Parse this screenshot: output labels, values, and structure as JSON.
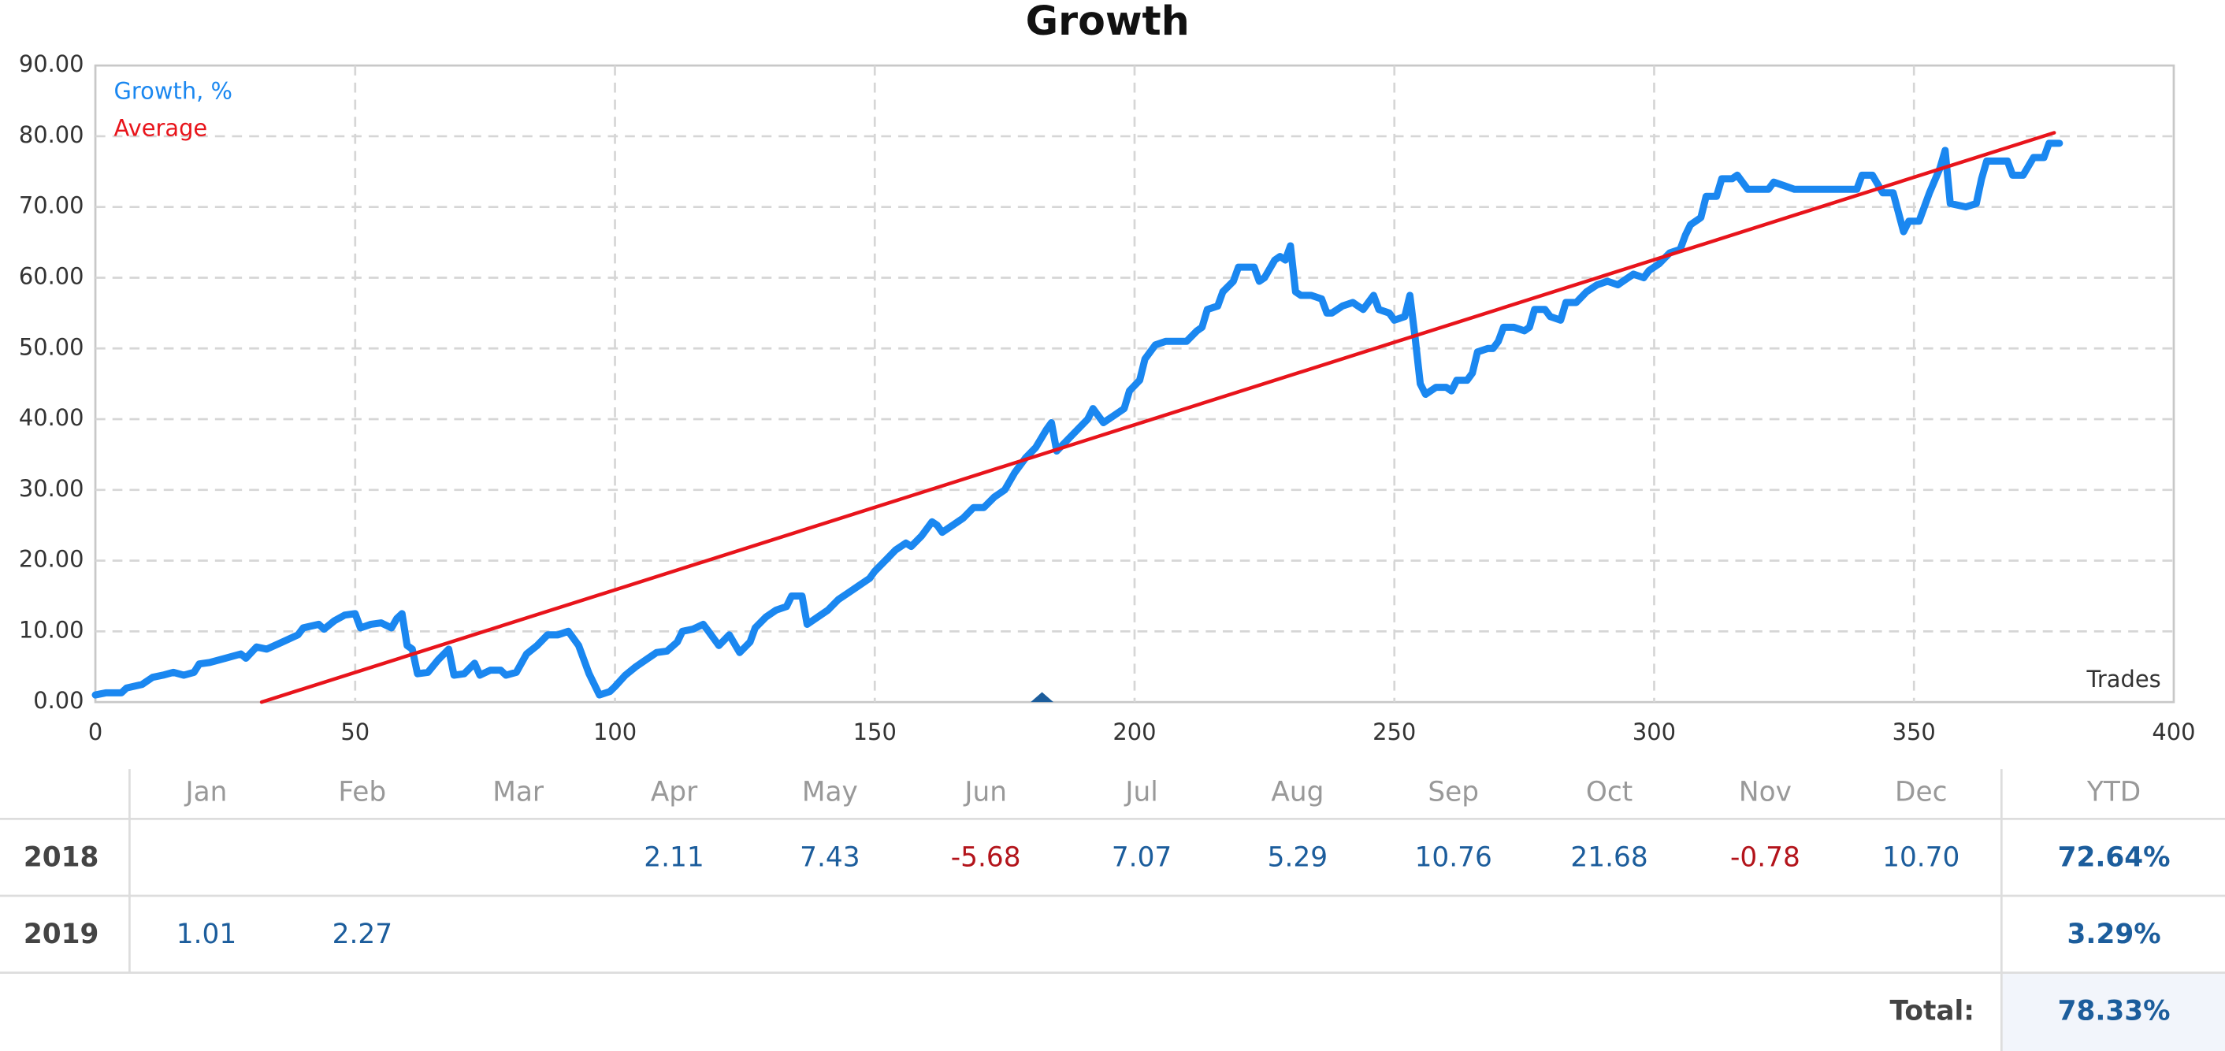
{
  "chart_data": {
    "type": "line",
    "title": "Growth",
    "x_label": "Trades",
    "legend": "top-left",
    "grid": true,
    "xlim": [
      0,
      400
    ],
    "xticks": [
      0,
      50,
      100,
      150,
      200,
      250,
      300,
      350,
      400
    ],
    "ylim": [
      0,
      90
    ],
    "yticks": [
      {
        "value": 0,
        "label": "0.00"
      },
      {
        "value": 10,
        "label": "10.00"
      },
      {
        "value": 20,
        "label": "20.00"
      },
      {
        "value": 30,
        "label": "30.00"
      },
      {
        "value": 40,
        "label": "40.00"
      },
      {
        "value": 50,
        "label": "50.00"
      },
      {
        "value": 60,
        "label": "60.00"
      },
      {
        "value": 70,
        "label": "70.00"
      },
      {
        "value": 80,
        "label": "80.00"
      },
      {
        "value": 90,
        "label": "90.00"
      }
    ],
    "series": [
      {
        "name": "Growth, %",
        "color": "#1a87f0",
        "width": 5,
        "x": [
          0,
          2,
          5,
          6,
          9,
          11,
          13,
          15,
          17,
          19,
          20,
          22,
          25,
          28,
          29,
          31,
          33,
          36,
          39,
          40,
          43,
          44,
          46,
          48,
          50,
          51,
          53,
          55,
          57,
          58,
          59,
          60,
          61,
          62,
          64,
          66,
          68,
          69,
          71,
          73,
          74,
          76,
          78,
          79,
          81,
          83,
          85,
          87,
          89,
          91,
          93,
          95,
          97,
          99,
          100,
          102,
          104,
          106,
          108,
          110,
          112,
          113,
          115,
          117,
          118,
          120,
          122,
          124,
          126,
          127,
          129,
          131,
          133,
          134,
          136,
          137,
          139,
          141,
          143,
          145,
          147,
          149,
          150,
          152,
          154,
          156,
          157,
          159,
          161,
          162,
          163,
          165,
          167,
          169,
          171,
          173,
          175,
          177,
          179,
          181,
          183,
          184,
          185,
          187,
          189,
          191,
          192,
          194,
          196,
          198,
          199,
          201,
          202,
          204,
          206,
          210,
          212,
          213,
          214,
          216,
          217,
          219,
          220,
          223,
          224,
          225,
          227,
          228,
          229,
          230,
          231,
          232,
          234,
          236,
          237,
          238,
          240,
          242,
          243,
          244,
          246,
          247,
          249,
          250,
          252,
          253,
          254,
          255,
          256,
          258,
          260,
          261,
          262,
          264,
          265,
          266,
          268,
          269,
          270,
          271,
          273,
          275,
          276,
          277,
          279,
          280,
          282,
          283,
          285,
          287,
          289,
          291,
          293,
          294,
          296,
          298,
          299,
          301,
          303,
          305,
          306,
          307,
          309,
          310,
          312,
          313,
          315,
          316,
          318,
          322,
          323,
          325,
          327,
          335,
          336,
          339,
          340,
          342,
          344,
          346,
          348,
          349,
          351,
          353,
          355,
          356,
          357,
          360,
          362,
          363,
          364,
          368,
          369,
          371,
          373,
          375,
          376,
          378
        ],
        "values": [
          1,
          1.3,
          1.3,
          2,
          2.5,
          3.5,
          3.8,
          4.2,
          3.8,
          4.2,
          5.4,
          5.6,
          6.2,
          6.8,
          6.2,
          7.8,
          7.5,
          8.5,
          9.5,
          10.5,
          11,
          10.3,
          11.5,
          12.3,
          12.5,
          10.5,
          11,
          11.2,
          10.5,
          11.8,
          12.5,
          8,
          7.5,
          4,
          4.2,
          6,
          7.5,
          3.8,
          4,
          5.5,
          3.8,
          4.5,
          4.5,
          3.8,
          4.2,
          6.8,
          8,
          9.5,
          9.5,
          10,
          8,
          4,
          1,
          1.5,
          2.2,
          3.8,
          5,
          6,
          7,
          7.2,
          8.5,
          10,
          10.3,
          11,
          10,
          8,
          9.5,
          7,
          8.5,
          10.5,
          12,
          13,
          13.5,
          15,
          15,
          11,
          12,
          13,
          14.5,
          15.5,
          16.5,
          17.5,
          18.5,
          20,
          21.5,
          22.5,
          22,
          23.5,
          25.5,
          25,
          24,
          25,
          26,
          27.5,
          27.5,
          29,
          30,
          32.5,
          34.5,
          36,
          38.5,
          39.5,
          35.5,
          37,
          38.5,
          40,
          41.5,
          39.5,
          40.5,
          41.5,
          44,
          45.5,
          48.5,
          50.5,
          51,
          51,
          52.5,
          53,
          55.5,
          56,
          58,
          59.5,
          61.5,
          61.5,
          59.5,
          60,
          62.5,
          63,
          62.5,
          64.5,
          58,
          57.5,
          57.5,
          57,
          55,
          55,
          56,
          56.5,
          56,
          55.5,
          57.5,
          55.5,
          55,
          54,
          54.5,
          57.5,
          51.5,
          45,
          43.5,
          44.5,
          44.5,
          44,
          45.5,
          45.5,
          46.5,
          49.5,
          50,
          50,
          51,
          53,
          53,
          52.5,
          53,
          55.5,
          55.5,
          54.5,
          54,
          56.5,
          56.5,
          58,
          59,
          59.5,
          59,
          59.5,
          60.5,
          60,
          61,
          62,
          63.5,
          64,
          66,
          67.5,
          68.5,
          71.5,
          71.5,
          74,
          74,
          74.5,
          72.5,
          72.5,
          73.5,
          73,
          72.5,
          72.5,
          72.5,
          72.5,
          74.5,
          74.5,
          72,
          72,
          66.5,
          68,
          68,
          72,
          75.5,
          78,
          70.5,
          70,
          70.5,
          74,
          76.5,
          76.5,
          74.5,
          74.5,
          77,
          77,
          79,
          79
        ]
      },
      {
        "name": "Average",
        "color": "#e8141b",
        "width": 2.5,
        "x": [
          32,
          377
        ],
        "values": [
          0,
          80.5
        ]
      }
    ]
  },
  "table": {
    "columns": [
      "Jan",
      "Feb",
      "Mar",
      "Apr",
      "May",
      "Jun",
      "Jul",
      "Aug",
      "Sep",
      "Oct",
      "Nov",
      "Dec",
      "YTD"
    ],
    "rows": [
      {
        "label": "2018",
        "cells": [
          null,
          null,
          null,
          "2.11",
          "7.43",
          "-5.68",
          "7.07",
          "5.29",
          "10.76",
          "21.68",
          "-0.78",
          "10.70",
          "72.64%"
        ]
      },
      {
        "label": "2019",
        "cells": [
          "1.01",
          "2.27",
          null,
          null,
          null,
          null,
          null,
          null,
          null,
          null,
          null,
          null,
          "3.29%"
        ]
      }
    ],
    "total_label": "Total:",
    "total": "78.33%"
  }
}
